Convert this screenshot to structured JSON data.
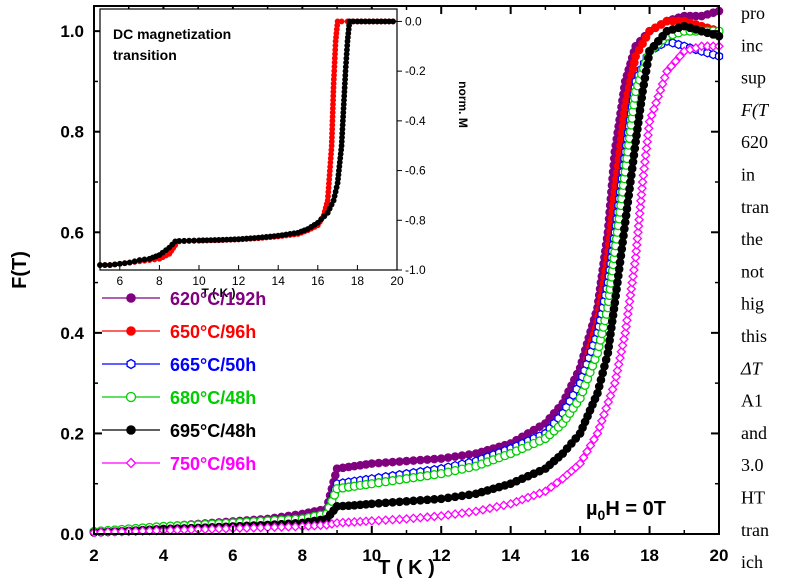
{
  "chart_data": [
    {
      "type": "scatter",
      "xlabel": "T ( K )",
      "ylabel": "F(T)",
      "xlim": [
        2,
        20
      ],
      "ylim": [
        0,
        1.05
      ],
      "xticks": [
        "2",
        "4",
        "6",
        "8",
        "10",
        "12",
        "14",
        "16",
        "18",
        "20"
      ],
      "yticks": [
        "0.0",
        "0.2",
        "0.4",
        "0.6",
        "0.8",
        "1.0"
      ],
      "annotation": "µ0H = 0T",
      "legend_position": "left",
      "series": [
        {
          "name": "620°C/192h",
          "color": "#800080",
          "marker": "filled-circle",
          "points": [
            [
              2.0,
              0.005
            ],
            [
              3.0,
              0.01
            ],
            [
              4.0,
              0.015
            ],
            [
              5.0,
              0.02
            ],
            [
              6.0,
              0.025
            ],
            [
              7.0,
              0.03
            ],
            [
              8.0,
              0.04
            ],
            [
              8.7,
              0.05
            ],
            [
              9.0,
              0.13
            ],
            [
              9.5,
              0.135
            ],
            [
              10.0,
              0.14
            ],
            [
              11.0,
              0.145
            ],
            [
              12.0,
              0.15
            ],
            [
              13.0,
              0.16
            ],
            [
              14.0,
              0.18
            ],
            [
              15.0,
              0.22
            ],
            [
              15.5,
              0.26
            ],
            [
              16.0,
              0.33
            ],
            [
              16.5,
              0.45
            ],
            [
              16.8,
              0.6
            ],
            [
              17.0,
              0.76
            ],
            [
              17.3,
              0.9
            ],
            [
              17.6,
              0.97
            ],
            [
              18.0,
              1.0
            ],
            [
              18.5,
              1.02
            ],
            [
              19.0,
              1.03
            ],
            [
              19.5,
              1.03
            ],
            [
              20.0,
              1.04
            ]
          ]
        },
        {
          "name": "650°C/96h",
          "color": "#ff0000",
          "marker": "filled-circle",
          "points": [
            [
              2.0,
              0.005
            ],
            [
              3.0,
              0.008
            ],
            [
              4.0,
              0.012
            ],
            [
              5.0,
              0.016
            ],
            [
              6.0,
              0.02
            ],
            [
              7.0,
              0.025
            ],
            [
              8.0,
              0.03
            ],
            [
              8.7,
              0.04
            ],
            [
              9.0,
              0.095
            ],
            [
              9.5,
              0.1
            ],
            [
              10.0,
              0.105
            ],
            [
              11.0,
              0.115
            ],
            [
              12.0,
              0.125
            ],
            [
              13.0,
              0.14
            ],
            [
              14.0,
              0.165
            ],
            [
              15.0,
              0.2
            ],
            [
              15.5,
              0.24
            ],
            [
              16.0,
              0.3
            ],
            [
              16.5,
              0.42
            ],
            [
              16.8,
              0.55
            ],
            [
              17.0,
              0.68
            ],
            [
              17.3,
              0.85
            ],
            [
              17.6,
              0.95
            ],
            [
              18.0,
              1.0
            ],
            [
              18.5,
              1.02
            ],
            [
              19.0,
              1.02
            ],
            [
              19.5,
              1.01
            ],
            [
              20.0,
              1.0
            ]
          ]
        },
        {
          "name": "665°C/50h",
          "color": "#0000ff",
          "marker": "hexagon-open",
          "points": [
            [
              2.0,
              0.005
            ],
            [
              3.0,
              0.008
            ],
            [
              4.0,
              0.012
            ],
            [
              5.0,
              0.016
            ],
            [
              6.0,
              0.02
            ],
            [
              7.0,
              0.025
            ],
            [
              8.0,
              0.03
            ],
            [
              8.7,
              0.04
            ],
            [
              9.0,
              0.1
            ],
            [
              9.5,
              0.105
            ],
            [
              10.0,
              0.11
            ],
            [
              11.0,
              0.12
            ],
            [
              12.0,
              0.13
            ],
            [
              13.0,
              0.145
            ],
            [
              14.0,
              0.17
            ],
            [
              15.0,
              0.2
            ],
            [
              15.5,
              0.24
            ],
            [
              16.0,
              0.3
            ],
            [
              16.5,
              0.4
            ],
            [
              16.8,
              0.5
            ],
            [
              17.0,
              0.6
            ],
            [
              17.3,
              0.76
            ],
            [
              17.6,
              0.9
            ],
            [
              18.0,
              0.96
            ],
            [
              18.5,
              0.98
            ],
            [
              19.0,
              0.97
            ],
            [
              19.5,
              0.96
            ],
            [
              20.0,
              0.95
            ]
          ]
        },
        {
          "name": "680°C/48h",
          "color": "#00cc00",
          "marker": "open-circle",
          "points": [
            [
              2.0,
              0.005
            ],
            [
              3.0,
              0.01
            ],
            [
              4.0,
              0.015
            ],
            [
              5.0,
              0.018
            ],
            [
              6.0,
              0.022
            ],
            [
              7.0,
              0.026
            ],
            [
              8.0,
              0.03
            ],
            [
              8.7,
              0.04
            ],
            [
              9.0,
              0.09
            ],
            [
              9.5,
              0.095
            ],
            [
              10.0,
              0.1
            ],
            [
              11.0,
              0.11
            ],
            [
              12.0,
              0.12
            ],
            [
              13.0,
              0.135
            ],
            [
              14.0,
              0.16
            ],
            [
              15.0,
              0.19
            ],
            [
              15.5,
              0.22
            ],
            [
              16.0,
              0.27
            ],
            [
              16.5,
              0.36
            ],
            [
              16.8,
              0.45
            ],
            [
              17.0,
              0.56
            ],
            [
              17.3,
              0.72
            ],
            [
              17.6,
              0.88
            ],
            [
              18.0,
              0.96
            ],
            [
              18.5,
              0.99
            ],
            [
              19.0,
              1.0
            ],
            [
              19.5,
              1.0
            ],
            [
              20.0,
              1.0
            ]
          ]
        },
        {
          "name": "695°C/48h",
          "color": "#000000",
          "marker": "filled-circle",
          "points": [
            [
              2.0,
              0.003
            ],
            [
              3.0,
              0.006
            ],
            [
              4.0,
              0.01
            ],
            [
              5.0,
              0.012
            ],
            [
              6.0,
              0.015
            ],
            [
              7.0,
              0.018
            ],
            [
              8.0,
              0.022
            ],
            [
              8.7,
              0.03
            ],
            [
              9.0,
              0.055
            ],
            [
              9.5,
              0.057
            ],
            [
              10.0,
              0.06
            ],
            [
              11.0,
              0.065
            ],
            [
              12.0,
              0.07
            ],
            [
              13.0,
              0.08
            ],
            [
              14.0,
              0.1
            ],
            [
              15.0,
              0.13
            ],
            [
              15.5,
              0.16
            ],
            [
              16.0,
              0.2
            ],
            [
              16.5,
              0.28
            ],
            [
              16.8,
              0.36
            ],
            [
              17.0,
              0.46
            ],
            [
              17.3,
              0.62
            ],
            [
              17.6,
              0.78
            ],
            [
              17.8,
              0.88
            ],
            [
              18.0,
              0.96
            ],
            [
              18.5,
              1.0
            ],
            [
              19.0,
              1.01
            ],
            [
              19.5,
              1.0
            ],
            [
              20.0,
              0.99
            ]
          ]
        },
        {
          "name": "750°C/96h",
          "color": "#ff00ff",
          "marker": "diamond-open",
          "points": [
            [
              2.0,
              0.003
            ],
            [
              3.0,
              0.005
            ],
            [
              4.0,
              0.007
            ],
            [
              5.0,
              0.009
            ],
            [
              6.0,
              0.011
            ],
            [
              7.0,
              0.013
            ],
            [
              8.0,
              0.015
            ],
            [
              8.7,
              0.018
            ],
            [
              9.0,
              0.022
            ],
            [
              9.5,
              0.024
            ],
            [
              10.0,
              0.026
            ],
            [
              11.0,
              0.03
            ],
            [
              12.0,
              0.036
            ],
            [
              13.0,
              0.045
            ],
            [
              14.0,
              0.06
            ],
            [
              15.0,
              0.085
            ],
            [
              15.5,
              0.11
            ],
            [
              16.0,
              0.14
            ],
            [
              16.5,
              0.2
            ],
            [
              17.0,
              0.3
            ],
            [
              17.3,
              0.4
            ],
            [
              17.6,
              0.55
            ],
            [
              17.8,
              0.7
            ],
            [
              18.0,
              0.82
            ],
            [
              18.5,
              0.92
            ],
            [
              19.0,
              0.96
            ],
            [
              19.5,
              0.97
            ],
            [
              20.0,
              0.97
            ]
          ]
        }
      ]
    },
    {
      "type": "line",
      "title": "DC magnetization transition",
      "title_lines": [
        "DC magnetization",
        "transition"
      ],
      "xlabel": "T ( K )",
      "ylabel": "norm. M",
      "xlim": [
        5,
        20
      ],
      "ylim": [
        -1.0,
        0.05
      ],
      "xticks": [
        "6",
        "8",
        "10",
        "12",
        "14",
        "16",
        "18",
        "20"
      ],
      "yticks": [
        "0.0",
        "-0.2",
        "-0.4",
        "-0.6",
        "-0.8",
        "-1.0"
      ],
      "series": [
        {
          "color": "#ff0000",
          "marker": "filled-circle",
          "points": [
            [
              5.0,
              -0.98
            ],
            [
              5.5,
              -0.98
            ],
            [
              6.0,
              -0.975
            ],
            [
              6.5,
              -0.97
            ],
            [
              7.0,
              -0.965
            ],
            [
              7.5,
              -0.96
            ],
            [
              8.0,
              -0.955
            ],
            [
              8.5,
              -0.935
            ],
            [
              8.8,
              -0.9
            ],
            [
              9.0,
              -0.885
            ],
            [
              9.5,
              -0.883
            ],
            [
              10.0,
              -0.882
            ],
            [
              11.0,
              -0.88
            ],
            [
              12.0,
              -0.877
            ],
            [
              13.0,
              -0.872
            ],
            [
              14.0,
              -0.865
            ],
            [
              15.0,
              -0.855
            ],
            [
              15.5,
              -0.84
            ],
            [
              16.0,
              -0.82
            ],
            [
              16.3,
              -0.78
            ],
            [
              16.5,
              -0.72
            ],
            [
              16.7,
              -0.5
            ],
            [
              16.8,
              -0.25
            ],
            [
              16.9,
              -0.08
            ],
            [
              17.0,
              0.0
            ],
            [
              17.2,
              0.0
            ],
            [
              17.5,
              0.0
            ],
            [
              18.0,
              0.0
            ],
            [
              19.0,
              0.0
            ],
            [
              20.0,
              0.0
            ]
          ]
        },
        {
          "color": "#000000",
          "marker": "filled-circle",
          "points": [
            [
              5.0,
              -0.98
            ],
            [
              5.5,
              -0.98
            ],
            [
              6.0,
              -0.975
            ],
            [
              6.5,
              -0.97
            ],
            [
              7.0,
              -0.96
            ],
            [
              7.5,
              -0.955
            ],
            [
              8.0,
              -0.94
            ],
            [
              8.5,
              -0.91
            ],
            [
              8.8,
              -0.885
            ],
            [
              9.0,
              -0.883
            ],
            [
              9.5,
              -0.882
            ],
            [
              10.0,
              -0.881
            ],
            [
              11.0,
              -0.879
            ],
            [
              12.0,
              -0.876
            ],
            [
              13.0,
              -0.87
            ],
            [
              14.0,
              -0.862
            ],
            [
              15.0,
              -0.85
            ],
            [
              15.5,
              -0.835
            ],
            [
              16.0,
              -0.81
            ],
            [
              16.5,
              -0.77
            ],
            [
              16.8,
              -0.72
            ],
            [
              17.0,
              -0.65
            ],
            [
              17.2,
              -0.5
            ],
            [
              17.3,
              -0.35
            ],
            [
              17.4,
              -0.2
            ],
            [
              17.5,
              -0.08
            ],
            [
              17.6,
              0.0
            ],
            [
              18.0,
              0.0
            ],
            [
              19.0,
              0.0
            ],
            [
              20.0,
              0.0
            ]
          ]
        }
      ]
    }
  ],
  "side_text": [
    "pro",
    "inc",
    "sup",
    "F(T",
    "620",
    "in",
    "tran",
    "the",
    "not",
    "hig",
    "this",
    "ΔT",
    "A1",
    "and",
    "3.0",
    "HT",
    "tran",
    "ich"
  ],
  "side_text_italic": [
    false,
    false,
    false,
    true,
    false,
    false,
    false,
    false,
    false,
    false,
    false,
    true,
    false,
    false,
    false,
    false,
    false,
    false
  ]
}
